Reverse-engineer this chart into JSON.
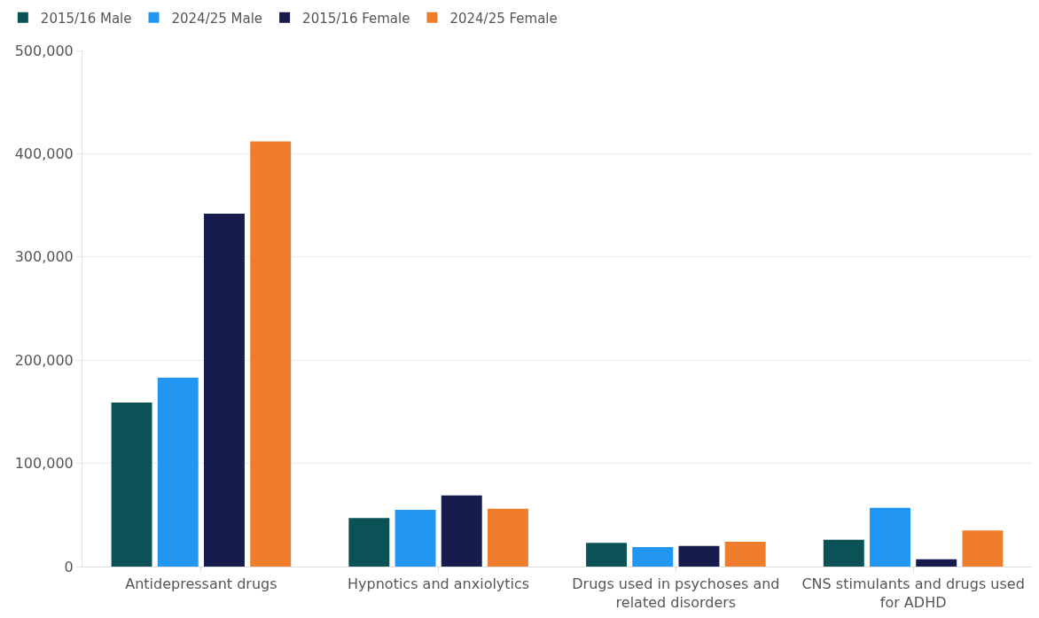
{
  "chart_data": {
    "type": "bar",
    "categories": [
      "Antidepressant drugs",
      "Hypnotics and anxiolytics",
      "Drugs used in psychoses and related disorders",
      "CNS stimulants and drugs used for ADHD"
    ],
    "series": [
      {
        "name": "2015/16 Male",
        "color": "#0b5256",
        "values": [
          159000,
          47000,
          23000,
          26000
        ]
      },
      {
        "name": "2024/25 Male",
        "color": "#2196f3",
        "values": [
          183000,
          55000,
          19000,
          57000
        ]
      },
      {
        "name": "2015/16 Female",
        "color": "#171c4e",
        "values": [
          342000,
          69000,
          20000,
          7000
        ]
      },
      {
        "name": "2024/25 Female",
        "color": "#f07c2e",
        "values": [
          412000,
          56000,
          24000,
          35000
        ]
      }
    ],
    "ylim": [
      0,
      500000
    ],
    "yticks": [
      0,
      {
        "value": 100000,
        "label": "100,000"
      },
      {
        "value": 200000,
        "label": "200,000"
      },
      {
        "value": 300000,
        "label": "300,000"
      },
      {
        "value": 400000,
        "label": "400,000"
      },
      {
        "value": 500000,
        "label": "500,000"
      }
    ],
    "grid": "y",
    "legend": "top left"
  }
}
